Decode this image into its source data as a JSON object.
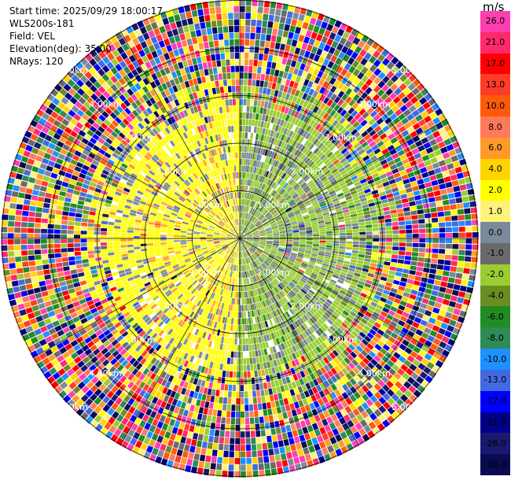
{
  "header": {
    "start_time": "Start time: 2025/09/29 18:00:17",
    "site": "WLS200s-181",
    "field": "Field: VEL",
    "elevation": "Elevation(deg): 35.00",
    "nrays": "NRays: 120"
  },
  "colorbar": {
    "unit": "m/s",
    "levels": [
      {
        "label": "26.0",
        "color": "#ff3eb0"
      },
      {
        "label": "21.0",
        "color": "#ff2a6a"
      },
      {
        "label": "17.0",
        "color": "#ff0000"
      },
      {
        "label": "13.0",
        "color": "#ff3c28"
      },
      {
        "label": "10.0",
        "color": "#ff5a0a"
      },
      {
        "label": "8.0",
        "color": "#ff7a5a"
      },
      {
        "label": "6.0",
        "color": "#ff9a2a"
      },
      {
        "label": "4.0",
        "color": "#ffd400"
      },
      {
        "label": "2.0",
        "color": "#ffff00"
      },
      {
        "label": "1.0",
        "color": "#fff27a"
      },
      {
        "label": "0.0",
        "color": "#7a8a9a"
      },
      {
        "label": "-1.0",
        "color": "#6a6a6a"
      },
      {
        "label": "-2.0",
        "color": "#9acd32"
      },
      {
        "label": "-4.0",
        "color": "#6b8e23"
      },
      {
        "label": "-6.0",
        "color": "#228b22"
      },
      {
        "label": "-8.0",
        "color": "#2e8b57"
      },
      {
        "label": "-10.0",
        "color": "#1e90ff"
      },
      {
        "label": "-13.0",
        "color": "#4169e1"
      },
      {
        "label": "-17.0",
        "color": "#0000ff"
      },
      {
        "label": "-21.0",
        "color": "#00008b"
      },
      {
        "label": "-26.0",
        "color": "#191970"
      },
      {
        "label": "-30.0",
        "color": "#0a0a55"
      }
    ]
  },
  "range_labels": [
    "1.00km",
    "2.00km",
    "3.00km",
    "4.00km",
    "5.00km"
  ],
  "map_data": {
    "field": "VEL",
    "elevation_deg": 35.0,
    "nrays": 120,
    "range_rings_km": [
      1,
      2,
      3,
      4,
      5
    ],
    "radial_lines": 12
  }
}
